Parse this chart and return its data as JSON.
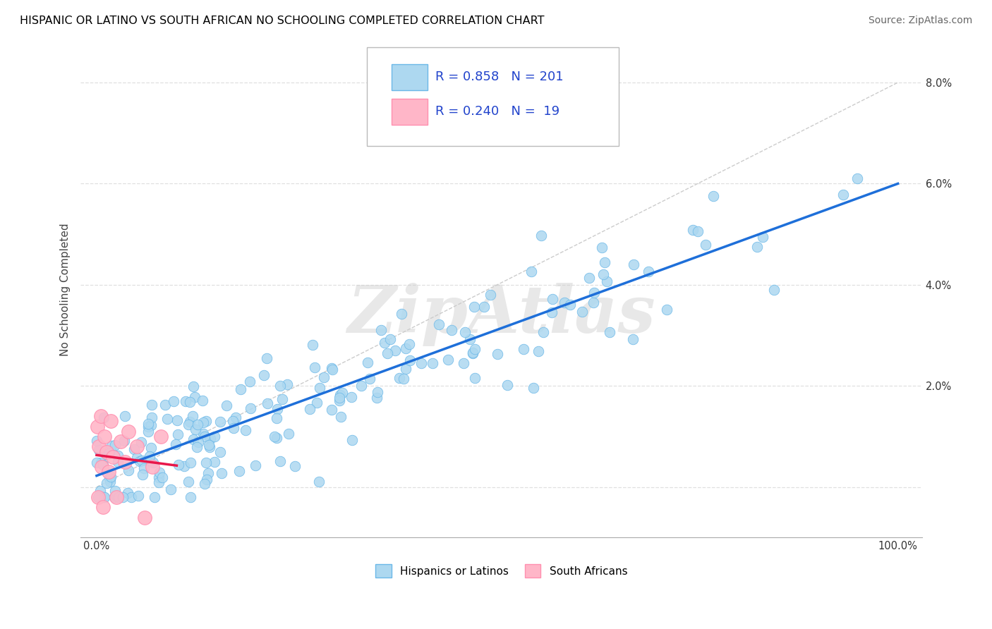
{
  "title": "HISPANIC OR LATINO VS SOUTH AFRICAN NO SCHOOLING COMPLETED CORRELATION CHART",
  "source": "Source: ZipAtlas.com",
  "ylabel": "No Schooling Completed",
  "blue_color": "#ADD8F0",
  "blue_edge_color": "#6BB8E8",
  "pink_color": "#FFB6C8",
  "pink_edge_color": "#FF8FAF",
  "blue_line_color": "#1E6FD9",
  "pink_line_color": "#E8174A",
  "legend_R_blue": "0.858",
  "legend_N_blue": "201",
  "legend_R_pink": "0.240",
  "legend_N_pink": " 19",
  "watermark": "ZipAtlas",
  "ref_line_color": "#CCCCCC",
  "grid_color": "#E0E0E0"
}
